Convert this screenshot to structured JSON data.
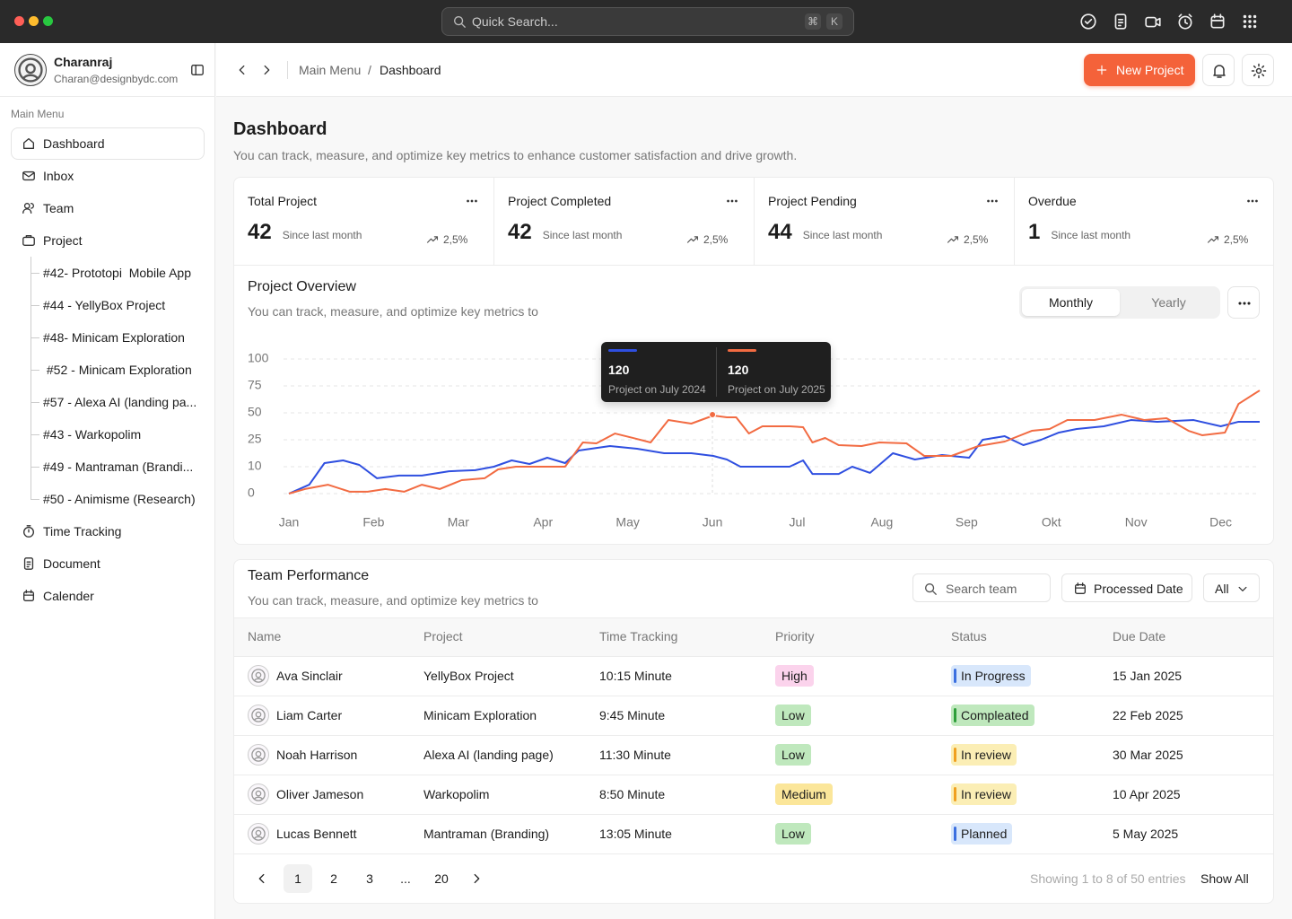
{
  "window": {
    "search_placeholder": "Quick Search...",
    "shortcut": [
      "⌘",
      "K"
    ]
  },
  "user": {
    "name": "Charanraj",
    "email": "Charan@designbydc.com"
  },
  "sidebar": {
    "section": "Main Menu",
    "items": [
      "Dashboard",
      "Inbox",
      "Team",
      "Project"
    ],
    "projects": [
      "#42- Prototopi  Mobile App",
      "#44 - YellyBox Project",
      "#48- Minicam Exploration",
      " #52 - Minicam Exploration",
      "#57 - Alexa AI (landing pa...",
      "#43 - Warkopolim",
      "#49 - Mantraman (Brandi...",
      "#50 - Animisme (Research)"
    ],
    "items_after": [
      "Time Tracking",
      "Document",
      "Calender"
    ]
  },
  "breadcrumb": {
    "parent": "Main Menu",
    "separator": "/",
    "current": "Dashboard"
  },
  "header_button": "New Project",
  "page": {
    "title": "Dashboard",
    "subtitle": "You can track, measure, and optimize key metrics to enhance customer satisfaction and drive growth."
  },
  "stats": [
    {
      "title": "Total Project",
      "value": 42,
      "note": "Since last month",
      "change": "2,5%"
    },
    {
      "title": "Project Completed",
      "value": 42,
      "note": "Since last month",
      "change": "2,5%"
    },
    {
      "title": "Project Pending",
      "value": 44,
      "note": "Since last month",
      "change": "2,5%"
    },
    {
      "title": "Overdue",
      "value": 1,
      "note": "Since last month",
      "change": "2,5%"
    }
  ],
  "overview": {
    "title": "Project Overview",
    "subtitle": "You can track, measure, and optimize key metrics to",
    "tabs": [
      "Monthly",
      "Yearly"
    ],
    "tooltip": [
      {
        "value": 120,
        "label": "Project on July 2024",
        "color": "#2f4fe0"
      },
      {
        "value": 120,
        "label": "Project on July 2025",
        "color": "#f26b42"
      }
    ]
  },
  "chart_data": {
    "type": "line",
    "grid": true,
    "xlim": [
      0,
      11.46
    ],
    "xticks": [
      {
        "value": 0,
        "label": "Jan"
      },
      {
        "value": 1,
        "label": "Feb"
      },
      {
        "value": 2,
        "label": "Mar"
      },
      {
        "value": 3,
        "label": "Apr"
      },
      {
        "value": 4,
        "label": "May"
      },
      {
        "value": 5,
        "label": "Jun"
      },
      {
        "value": 6,
        "label": "Jul"
      },
      {
        "value": 7,
        "label": "Aug"
      },
      {
        "value": 8,
        "label": "Sep"
      },
      {
        "value": 9,
        "label": "Okt"
      },
      {
        "value": 10,
        "label": "Nov"
      },
      {
        "value": 11,
        "label": "Dec"
      }
    ],
    "ylim": [
      0,
      100
    ],
    "yticks": [
      0,
      10,
      25,
      50,
      75,
      100
    ],
    "series": [
      {
        "color": "#2f4fe0",
        "x": [
          0,
          0.24,
          0.42,
          0.64,
          0.83,
          1.04,
          1.3,
          1.57,
          1.89,
          2.2,
          2.42,
          2.63,
          2.84,
          3.05,
          3.26,
          3.42,
          3.79,
          4.11,
          4.43,
          4.75,
          5.01,
          5.17,
          5.33,
          5.59,
          5.91,
          6.07,
          6.18,
          6.49,
          6.65,
          6.86,
          7.13,
          7.39,
          7.71,
          8.03,
          8.19,
          8.45,
          8.67,
          8.88,
          9.09,
          9.3,
          9.62,
          9.94,
          10.25,
          10.68,
          11.0,
          11.21,
          11.46
        ],
        "values": [
          0,
          3.3,
          12,
          13.5,
          11,
          5.7,
          6.7,
          6.7,
          8.3,
          8.7,
          10,
          13.5,
          11.5,
          15,
          12,
          19,
          21.5,
          20,
          17.5,
          17.5,
          16,
          14,
          10,
          10,
          10,
          13.5,
          7.3,
          7.3,
          10,
          7.7,
          17.5,
          14,
          16.5,
          15,
          25,
          28.3,
          22,
          25,
          31.7,
          35,
          37.5,
          43.3,
          41.7,
          43.3,
          37.5,
          41.7,
          41.7
        ]
      },
      {
        "color": "#f26b42",
        "x": [
          0,
          0.19,
          0.46,
          0.72,
          0.93,
          1.14,
          1.36,
          1.57,
          1.78,
          2.04,
          2.31,
          2.47,
          2.68,
          2.94,
          3.26,
          3.47,
          3.63,
          3.85,
          4.06,
          4.27,
          4.48,
          4.75,
          5.01,
          5.17,
          5.28,
          5.43,
          5.59,
          5.91,
          6.07,
          6.18,
          6.33,
          6.49,
          6.76,
          6.97,
          7.29,
          7.5,
          7.82,
          8.14,
          8.45,
          8.77,
          8.98,
          9.19,
          9.51,
          9.83,
          10.1,
          10.36,
          10.62,
          10.78,
          11.05,
          11.21,
          11.46
        ],
        "values": [
          0,
          1.7,
          3.3,
          0.7,
          0.7,
          1.7,
          0.7,
          3.3,
          1.7,
          5,
          5.7,
          9,
          10,
          10,
          10,
          23.5,
          23,
          30.8,
          26.7,
          23.5,
          43.3,
          40,
          47.5,
          45.8,
          45.8,
          30.8,
          37.5,
          37.5,
          36.7,
          23.5,
          26.7,
          22,
          21.5,
          23.5,
          23,
          16,
          16,
          21.5,
          24,
          33.3,
          35,
          43.3,
          43.3,
          48.3,
          43.3,
          45,
          33.3,
          29.2,
          31.7,
          58.3,
          70.8
        ]
      }
    ]
  },
  "team": {
    "title": "Team Performance",
    "subtitle": "You can track, measure, and optimize key metrics to",
    "search_placeholder": "Search team",
    "date_filter": "Processed Date",
    "filter": "All",
    "columns": [
      "Name",
      "Project",
      "Time Tracking",
      "Priority",
      "Status",
      "Due Date"
    ],
    "rows": [
      {
        "name": "Ava Sinclair",
        "project": "YellyBox Project",
        "time": "10:15 Minute",
        "priority": {
          "label": "High",
          "color": "#fbd3ec"
        },
        "status": {
          "label": "In Progress",
          "color": "#d8e7fb",
          "bar": "#3b6fe0"
        },
        "due": "15 Jan 2025"
      },
      {
        "name": "Liam Carter",
        "project": "Minicam Exploration",
        "time": "9:45 Minute",
        "priority": {
          "label": "Low",
          "color": "#bfe8bd"
        },
        "status": {
          "label": "Compleated",
          "color": "#bfe8bd",
          "bar": "#2e9e3a"
        },
        "due": "22 Feb 2025"
      },
      {
        "name": "Noah Harrison",
        "project": "Alexa AI (landing page)",
        "time": "11:30 Minute",
        "priority": {
          "label": "Low",
          "color": "#bfe8bd"
        },
        "status": {
          "label": "In review",
          "color": "#fbeeb5",
          "bar": "#f0a020"
        },
        "due": "30 Mar 2025"
      },
      {
        "name": "Oliver Jameson",
        "project": "Warkopolim",
        "time": "8:50 Minute",
        "priority": {
          "label": "Medium",
          "color": "#fbe69a"
        },
        "status": {
          "label": "In review",
          "color": "#fbeeb5",
          "bar": "#f0a020"
        },
        "due": "10 Apr 2025"
      },
      {
        "name": "Lucas Bennett",
        "project": "Mantraman (Branding)",
        "time": "13:05 Minute",
        "priority": {
          "label": "Low",
          "color": "#bfe8bd"
        },
        "status": {
          "label": "Planned",
          "color": "#d8e7fb",
          "bar": "#3b6fe0"
        },
        "due": "5 May 2025"
      }
    ],
    "pagination": {
      "pages": [
        1,
        2,
        3,
        "...",
        20
      ],
      "summary": "Showing 1 to 8 of 50 entries",
      "show_all": "Show All"
    }
  }
}
